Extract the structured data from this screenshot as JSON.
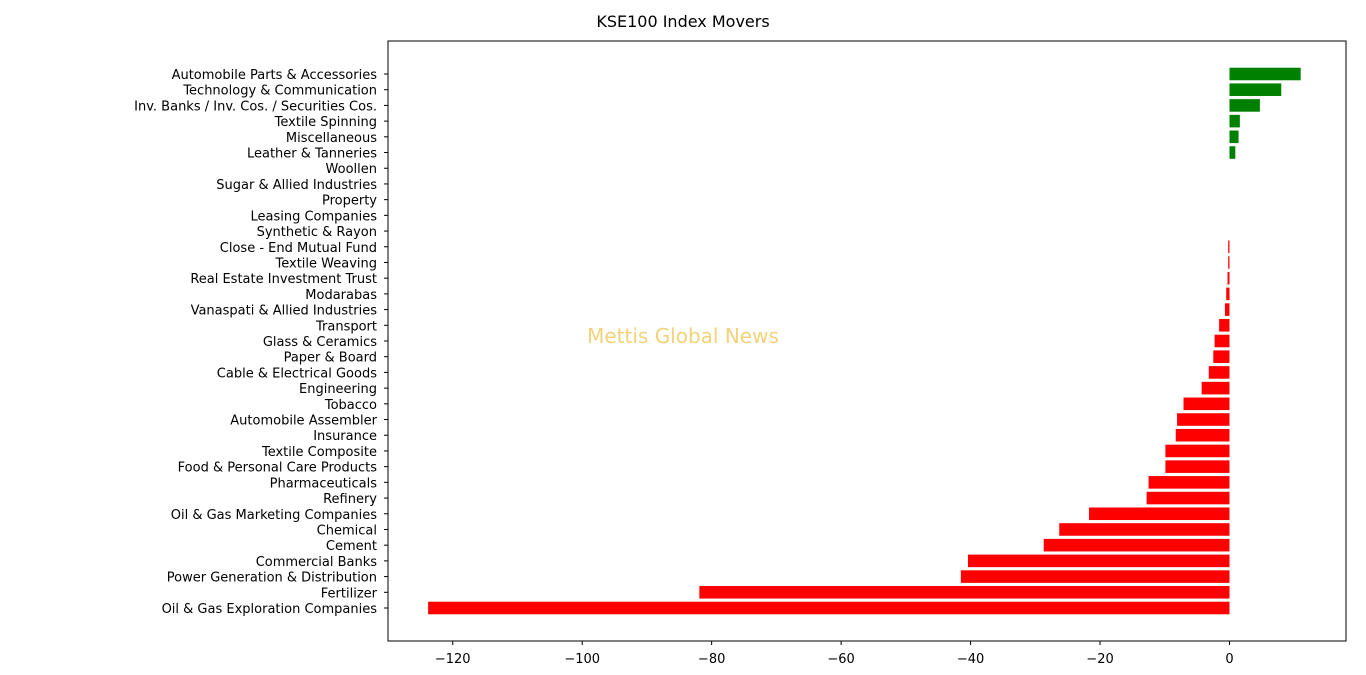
{
  "chart_data": {
    "type": "bar",
    "orientation": "horizontal",
    "title": "KSE100 Index Movers",
    "watermark": "Mettis Global News",
    "xlabel": "",
    "ylabel": "",
    "xlim": [
      -130,
      18
    ],
    "xticks": [
      -120,
      -100,
      -80,
      -60,
      -40,
      -20,
      0
    ],
    "xtick_labels": [
      "−120",
      "−100",
      "−80",
      "−60",
      "−40",
      "−20",
      "0"
    ],
    "grid": false,
    "legend": "none",
    "colors": {
      "positive": "#008000",
      "negative": "#ff0000"
    },
    "categories": [
      "Automobile Parts & Accessories",
      "Technology & Communication",
      "Inv. Banks / Inv. Cos. / Securities Cos.",
      "Textile Spinning",
      "Miscellaneous",
      "Leather & Tanneries",
      "Woollen",
      "Sugar & Allied Industries",
      "Property",
      "Leasing Companies",
      "Synthetic & Rayon",
      "Close - End Mutual Fund",
      "Textile Weaving",
      "Real Estate Investment Trust",
      "Modarabas",
      "Vanaspati & Allied Industries",
      "Transport",
      "Glass & Ceramics",
      "Paper & Board",
      "Cable & Electrical Goods",
      "Engineering",
      "Tobacco",
      "Automobile Assembler",
      "Insurance",
      "Textile Composite",
      "Food & Personal Care Products",
      "Pharmaceuticals",
      "Refinery",
      "Oil & Gas Marketing Companies",
      "Chemical",
      "Cement",
      "Commercial Banks",
      "Power Generation & Distribution",
      "Fertilizer",
      "Oil & Gas Exploration Companies"
    ],
    "values": [
      11.0,
      8.0,
      4.7,
      1.6,
      1.4,
      0.9,
      0.0,
      0.0,
      0.0,
      0.0,
      0.0,
      -0.2,
      -0.2,
      -0.3,
      -0.5,
      -0.7,
      -1.6,
      -2.3,
      -2.5,
      -3.2,
      -4.3,
      -7.1,
      -8.1,
      -8.3,
      -9.9,
      -9.9,
      -12.5,
      -12.8,
      -21.7,
      -26.3,
      -28.7,
      -40.4,
      -41.5,
      -81.9,
      -123.8
    ]
  }
}
